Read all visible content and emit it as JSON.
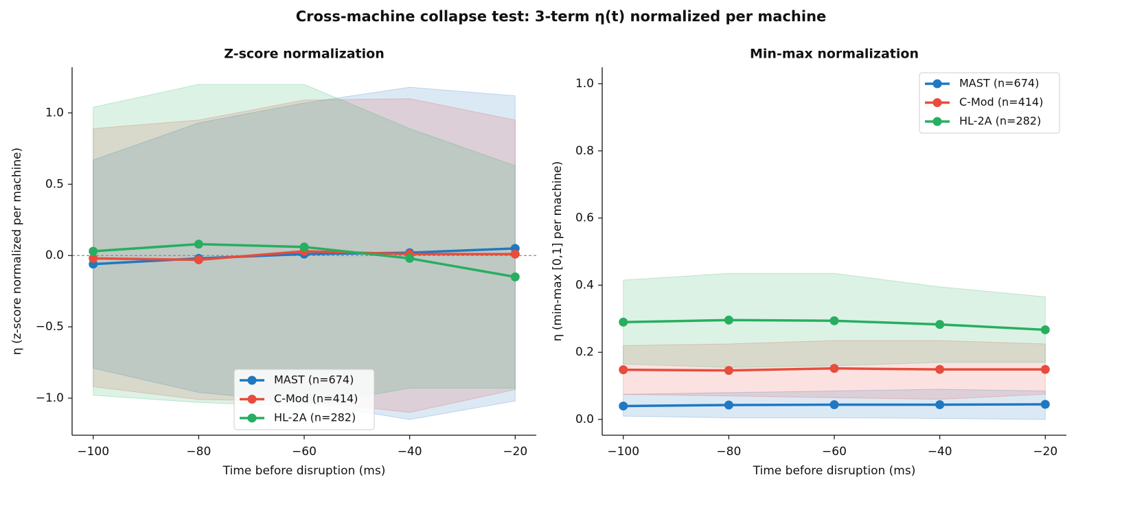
{
  "title": "Cross-machine collapse test: 3-term η(t) normalized per machine",
  "chart_data": [
    {
      "type": "line",
      "title": "Z-score normalization",
      "x_label": "Time before disruption (ms)",
      "y_label": "η (z-score normalized per machine)",
      "x": [
        -100,
        -80,
        -60,
        -40,
        -20
      ],
      "xlim": [
        -104,
        -16
      ],
      "ylim": [
        -1.26,
        1.32
      ],
      "xticks": [
        {
          "value": -100,
          "label": "−100"
        },
        {
          "value": -80,
          "label": "−80"
        },
        {
          "value": -60,
          "label": "−60"
        },
        {
          "value": -40,
          "label": "−40"
        },
        {
          "value": -20,
          "label": "−20"
        }
      ],
      "yticks": [
        {
          "value": -1,
          "label": "−1.0"
        },
        {
          "value": -0.5,
          "label": "−0.5"
        },
        {
          "value": 0,
          "label": "0.0"
        },
        0.5,
        {
          "value": 1,
          "label": "1.0"
        }
      ],
      "zero_line": true,
      "legend": "lower center",
      "series": [
        {
          "name": "MAST (n=674)",
          "color": "#1f78c1",
          "values": [
            -0.06,
            -0.02,
            0.01,
            0.02,
            0.05
          ],
          "lower": [
            -0.79,
            -0.96,
            -1.03,
            -1.15,
            -1.02
          ],
          "upper": [
            0.67,
            0.93,
            1.07,
            1.18,
            1.12
          ]
        },
        {
          "name": "C-Mod (n=414)",
          "color": "#e74c3c",
          "values": [
            -0.02,
            -0.03,
            0.03,
            0.01,
            0.01
          ],
          "lower": [
            -0.92,
            -1.01,
            -1.02,
            -1.1,
            -0.94
          ],
          "upper": [
            0.89,
            0.95,
            1.09,
            1.1,
            0.95
          ]
        },
        {
          "name": "HL-2A (n=282)",
          "color": "#27ae60",
          "values": [
            0.03,
            0.08,
            0.06,
            -0.02,
            -0.15
          ],
          "lower": [
            -0.98,
            -1.03,
            -1.06,
            -0.93,
            -0.93
          ],
          "upper": [
            1.04,
            1.2,
            1.2,
            0.89,
            0.63
          ]
        }
      ]
    },
    {
      "type": "line",
      "title": "Min-max normalization",
      "x_label": "Time before disruption (ms)",
      "y_label": "η (min-max [0,1] per machine)",
      "x": [
        -100,
        -80,
        -60,
        -40,
        -20
      ],
      "xlim": [
        -104,
        -16
      ],
      "ylim": [
        -0.047,
        1.049
      ],
      "xticks": [
        {
          "value": -100,
          "label": "−100"
        },
        {
          "value": -80,
          "label": "−80"
        },
        {
          "value": -60,
          "label": "−60"
        },
        {
          "value": -40,
          "label": "−40"
        },
        {
          "value": -20,
          "label": "−20"
        }
      ],
      "yticks": [
        {
          "value": 0,
          "label": "0.0"
        },
        0.2,
        0.4,
        0.6,
        0.8,
        {
          "value": 1,
          "label": "1.0"
        }
      ],
      "zero_line": false,
      "legend": "upper right",
      "series": [
        {
          "name": "MAST (n=674)",
          "color": "#1f78c1",
          "values": [
            0.04,
            0.043,
            0.044,
            0.044,
            0.045
          ],
          "lower": [
            0.01,
            0.005,
            0.005,
            0.003,
            0.0
          ],
          "upper": [
            0.075,
            0.08,
            0.085,
            0.09,
            0.085
          ]
        },
        {
          "name": "C-Mod (n=414)",
          "color": "#e74c3c",
          "values": [
            0.148,
            0.146,
            0.152,
            0.149,
            0.149
          ],
          "lower": [
            0.075,
            0.07,
            0.065,
            0.06,
            0.075
          ],
          "upper": [
            0.22,
            0.225,
            0.235,
            0.235,
            0.225
          ]
        },
        {
          "name": "HL-2A (n=282)",
          "color": "#27ae60",
          "values": [
            0.29,
            0.296,
            0.294,
            0.283,
            0.267
          ],
          "lower": [
            0.165,
            0.155,
            0.16,
            0.17,
            0.17
          ],
          "upper": [
            0.415,
            0.435,
            0.435,
            0.395,
            0.365
          ]
        }
      ]
    }
  ]
}
